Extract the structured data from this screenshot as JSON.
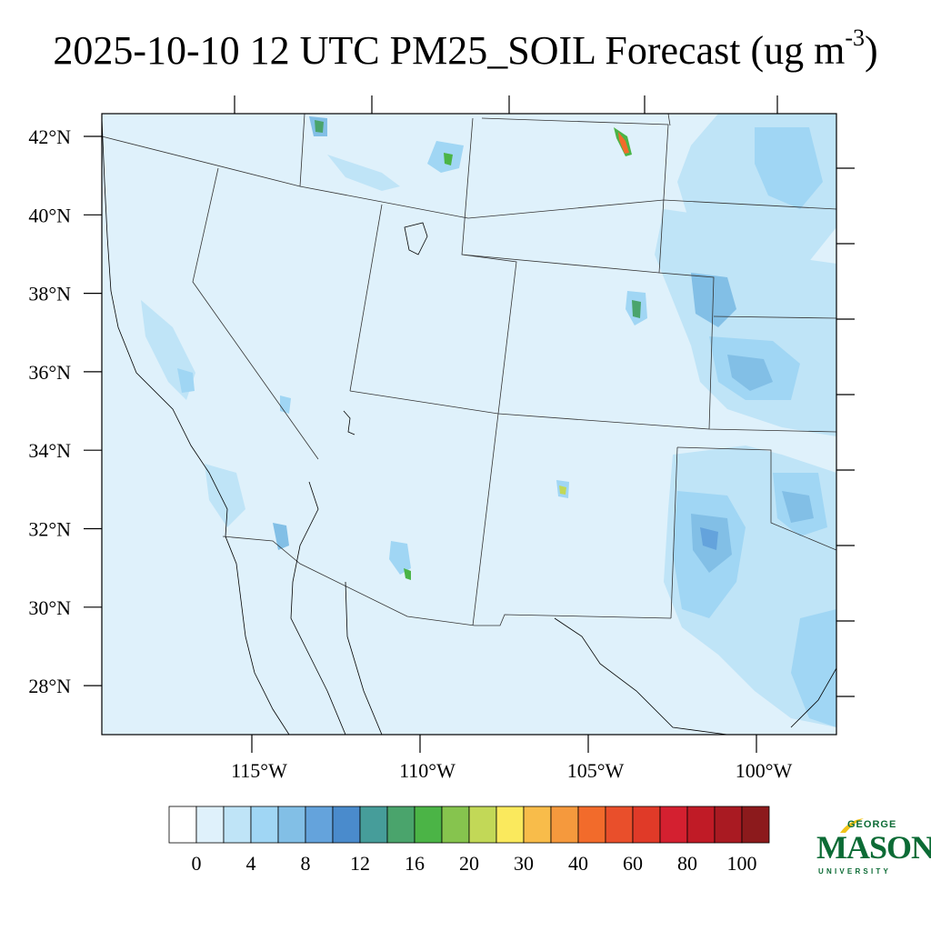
{
  "title": {
    "main": "2025-10-10 12 UTC PM25_SOIL Forecast (ug m",
    "superscript": "-3",
    "close": ")"
  },
  "map": {
    "background_color": "#dff1fb",
    "lat_labels": [
      "42°N",
      "40°N",
      "38°N",
      "36°N",
      "34°N",
      "32°N",
      "30°N",
      "28°N"
    ],
    "lon_labels": [
      "115°W",
      "110°W",
      "105°W",
      "100°W"
    ]
  },
  "colorbar": {
    "colors": [
      "#ffffff",
      "#dff1fb",
      "#bfe4f7",
      "#a0d6f4",
      "#82bfe6",
      "#64a3dc",
      "#4a8bcc",
      "#469d9a",
      "#4aa46c",
      "#4bb446",
      "#86c44e",
      "#c2d857",
      "#fae95d",
      "#f8bc4a",
      "#f5993d",
      "#f26b2b",
      "#e94f2b",
      "#e03a28",
      "#d42030",
      "#c01b26",
      "#a91a22",
      "#8c1a1c"
    ],
    "labels": [
      "0",
      "4",
      "8",
      "12",
      "16",
      "20",
      "30",
      "40",
      "60",
      "80",
      "100"
    ]
  },
  "logo": {
    "top": "GEORGE",
    "name": "MASON",
    "bottom": "UNIVERSITY",
    "color": "#0c6b35",
    "accent": "#f0c419"
  }
}
